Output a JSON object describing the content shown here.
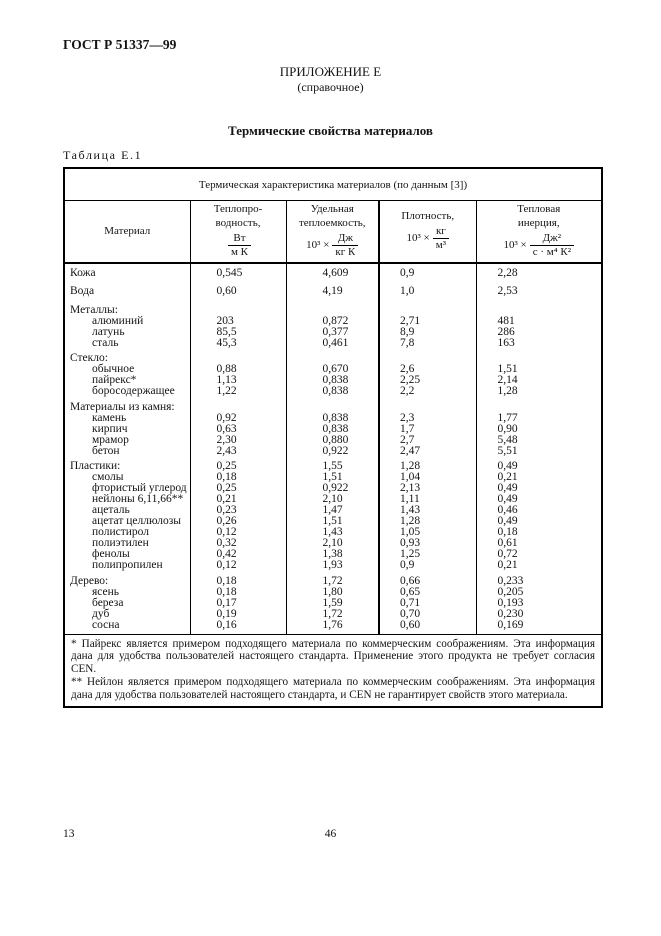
{
  "page": {
    "doc_number": "ГОСТ Р 51337—99",
    "appendix_line1": "ПРИЛОЖЕНИЕ Е",
    "appendix_line2": "(справочное)",
    "title": "Термические свойства материалов",
    "table_label": "Таблица Е.1",
    "page_number_left": "13",
    "page_number_center": "46"
  },
  "table": {
    "caption": "Термическая характеристика материалов (по данным [3])",
    "columns": {
      "material": {
        "label": "Материал"
      },
      "conductivity": {
        "line1": "Теплопро-",
        "line2": "водность,",
        "prefix": "",
        "num": "Вт",
        "den": "м К"
      },
      "heat_capacity": {
        "line1": "Удельная",
        "line2": "теплоемкость,",
        "prefix": "10³ ×",
        "num": "Дж",
        "den": "кг К"
      },
      "density": {
        "line1": "Плотность,",
        "line2": "",
        "prefix": "10³ ×",
        "num": "кг",
        "den": "м³"
      },
      "thermal_inertia": {
        "line1": "Тепловая",
        "line2": "инерция,",
        "prefix": "10³ ×",
        "num": "Дж²",
        "den": "с · м⁴ К²"
      }
    },
    "rows": [
      {
        "type": "plain",
        "name": "Кожа",
        "values": [
          "0,545",
          "4,609",
          "0,9",
          "2,28"
        ]
      },
      {
        "type": "plain",
        "name": "Вода",
        "values": [
          "0,60",
          "4,19",
          "1,0",
          "2,53"
        ]
      },
      {
        "type": "group",
        "name": "Металлы:",
        "values": [
          "",
          "",
          "",
          ""
        ]
      },
      {
        "type": "sub",
        "name": "алюминий",
        "values": [
          "203",
          "0,872",
          "2,71",
          "481"
        ]
      },
      {
        "type": "sub",
        "name": "латунь",
        "values": [
          "85,5",
          "0,377",
          "8,9",
          "286"
        ]
      },
      {
        "type": "sub",
        "name": "сталь",
        "values": [
          "45,3",
          "0,461",
          "7,8",
          "163"
        ]
      },
      {
        "type": "group",
        "name": "Стекло:",
        "values": [
          "",
          "",
          "",
          ""
        ]
      },
      {
        "type": "sub",
        "name": "обычное",
        "values": [
          "0,88",
          "0,670",
          "2,6",
          "1,51"
        ]
      },
      {
        "type": "sub",
        "name": "пайрекс*",
        "values": [
          "1,13",
          "0,838",
          "2,25",
          "2,14"
        ]
      },
      {
        "type": "sub",
        "name": "боросодержащее",
        "values": [
          "1,22",
          "0,838",
          "2,2",
          "1,28"
        ]
      },
      {
        "type": "group",
        "name": "Материалы из камня:",
        "values": [
          "",
          "",
          "",
          ""
        ]
      },
      {
        "type": "sub",
        "name": "камень",
        "values": [
          "0,92",
          "0,838",
          "2,3",
          "1,77"
        ]
      },
      {
        "type": "sub",
        "name": "кирпич",
        "values": [
          "0,63",
          "0,838",
          "1,7",
          "0,90"
        ]
      },
      {
        "type": "sub",
        "name": "мрамор",
        "values": [
          "2,30",
          "0,880",
          "2,7",
          "5,48"
        ]
      },
      {
        "type": "sub",
        "name": "бетон",
        "values": [
          "2,43",
          "0,922",
          "2,47",
          "5,51"
        ]
      },
      {
        "type": "group",
        "name": "Пластики:",
        "values": [
          "0,25",
          "1,55",
          "1,28",
          "0,49"
        ]
      },
      {
        "type": "sub",
        "name": "смолы",
        "values": [
          "0,18",
          "1,51",
          "1,04",
          "0,21"
        ]
      },
      {
        "type": "sub",
        "name": "фтористый углерод",
        "values": [
          "0,25",
          "0,922",
          "2,13",
          "0,49"
        ]
      },
      {
        "type": "sub",
        "name": "нейлоны 6,11,66**",
        "values": [
          "0,21",
          "2,10",
          "1,11",
          "0,49"
        ]
      },
      {
        "type": "sub",
        "name": "ацеталь",
        "values": [
          "0,23",
          "1,47",
          "1,43",
          "0,46"
        ]
      },
      {
        "type": "sub",
        "name": "ацетат целлюлозы",
        "values": [
          "0,26",
          "1,51",
          "1,28",
          "0,49"
        ]
      },
      {
        "type": "sub",
        "name": "полистирол",
        "values": [
          "0,12",
          "1,43",
          "1,05",
          "0,18"
        ]
      },
      {
        "type": "sub",
        "name": "полиэтилен",
        "values": [
          "0,32",
          "2,10",
          "0,93",
          "0,61"
        ]
      },
      {
        "type": "sub",
        "name": "фенолы",
        "values": [
          "0,42",
          "1,38",
          "1,25",
          "0,72"
        ]
      },
      {
        "type": "sub",
        "name": "полипропилен",
        "values": [
          "0,12",
          "1,93",
          "0,9",
          "0,21"
        ]
      },
      {
        "type": "group",
        "name": "Дерево:",
        "values": [
          "0,18",
          "1,72",
          "0,66",
          "0,233"
        ]
      },
      {
        "type": "sub",
        "name": "ясень",
        "values": [
          "0,18",
          "1,80",
          "0,65",
          "0,205"
        ]
      },
      {
        "type": "sub",
        "name": "береза",
        "values": [
          "0,17",
          "1,59",
          "0,71",
          "0,193"
        ]
      },
      {
        "type": "sub",
        "name": "дуб",
        "values": [
          "0,19",
          "1,72",
          "0,70",
          "0,230"
        ]
      },
      {
        "type": "sub",
        "name": "сосна",
        "values": [
          "0,16",
          "1,76",
          "0,60",
          "0,169"
        ]
      }
    ]
  },
  "footnotes": [
    "* Пайрекс является примером подходящего материала по коммерческим соображениям. Эта информация дана для удобства пользователей настоящего стандарта. Применение этого продукта не требует согласия CEN.",
    "** Нейлон является примером подходящего материала по коммерческим соображениям. Эта информация дана для удобства пользователей настоящего стандарта, и CEN не гарантирует свойств этого материала."
  ]
}
